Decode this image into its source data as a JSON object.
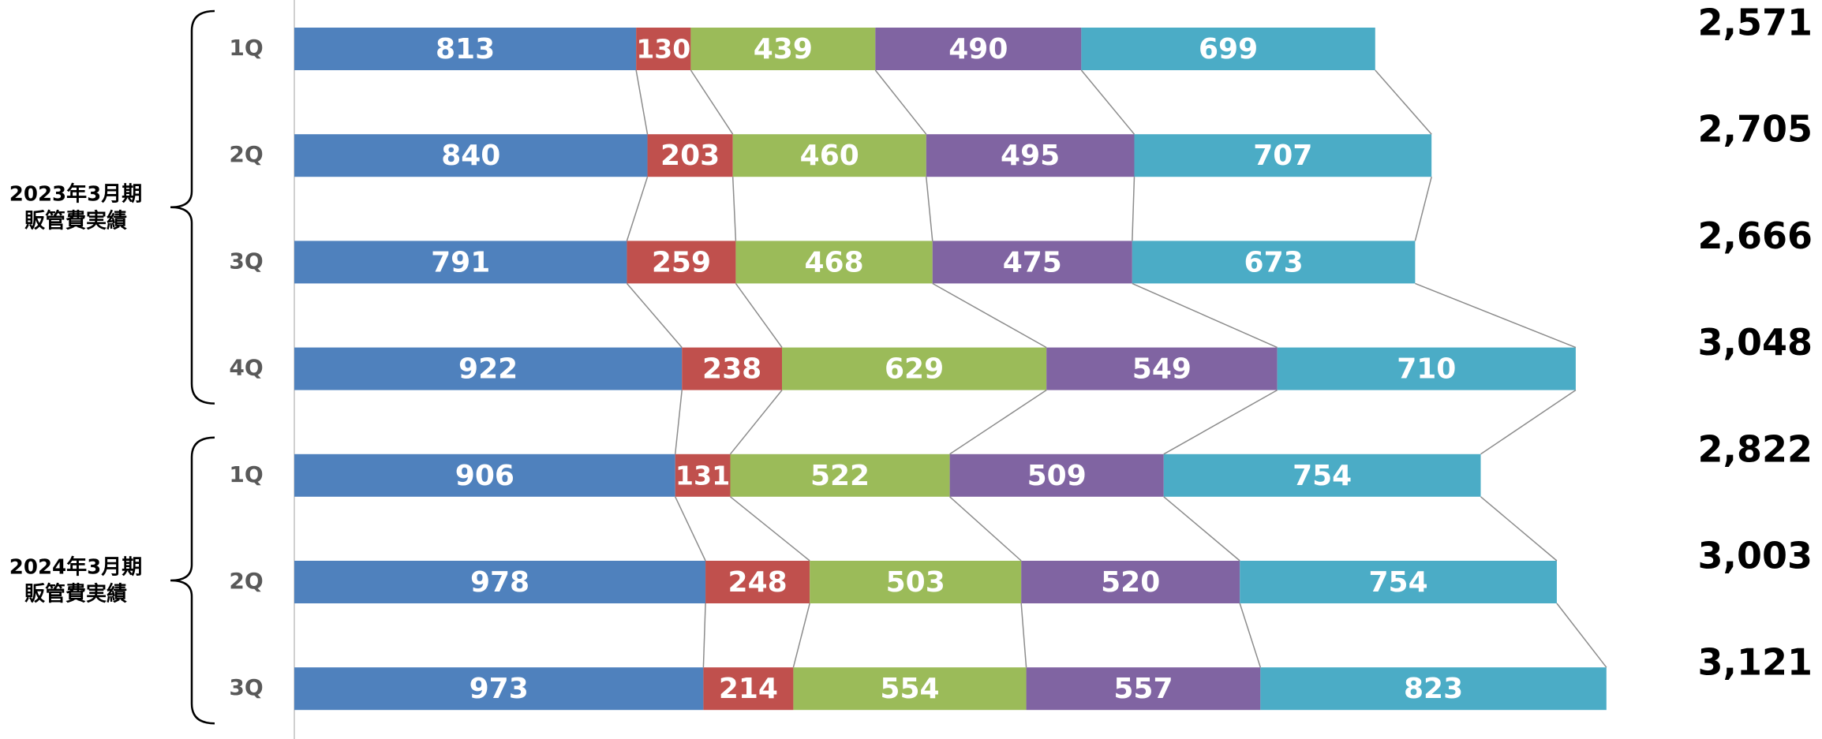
{
  "chart_data": {
    "type": "stacked-bar-horizontal",
    "groups": [
      {
        "label": [
          "2023年3月期",
          "販管費実績"
        ],
        "categories": [
          "1Q",
          "2Q",
          "3Q",
          "4Q"
        ]
      },
      {
        "label": [
          "2024年3月期",
          "販管費実績"
        ],
        "categories": [
          "1Q",
          "2Q",
          "3Q"
        ]
      }
    ],
    "series": [
      {
        "color": "#4f81bd",
        "values": [
          813,
          840,
          791,
          922,
          906,
          978,
          973
        ]
      },
      {
        "color": "#c0504d",
        "values": [
          130,
          203,
          259,
          238,
          131,
          248,
          214
        ]
      },
      {
        "color": "#9bbb59",
        "values": [
          439,
          460,
          468,
          629,
          522,
          503,
          554
        ]
      },
      {
        "color": "#8064a2",
        "values": [
          490,
          495,
          475,
          549,
          509,
          520,
          557
        ]
      },
      {
        "color": "#4bacc6",
        "values": [
          699,
          707,
          673,
          710,
          754,
          754,
          823
        ]
      }
    ],
    "totals": {
      "values": [
        2571,
        2705,
        2666,
        3048,
        2822,
        3003,
        3121
      ],
      "value_labels": [
        "2,571",
        "2,705",
        "2,666",
        "3,048",
        "2,822",
        "3,003",
        "3,121"
      ]
    },
    "xlim": [
      0,
      3600
    ]
  }
}
